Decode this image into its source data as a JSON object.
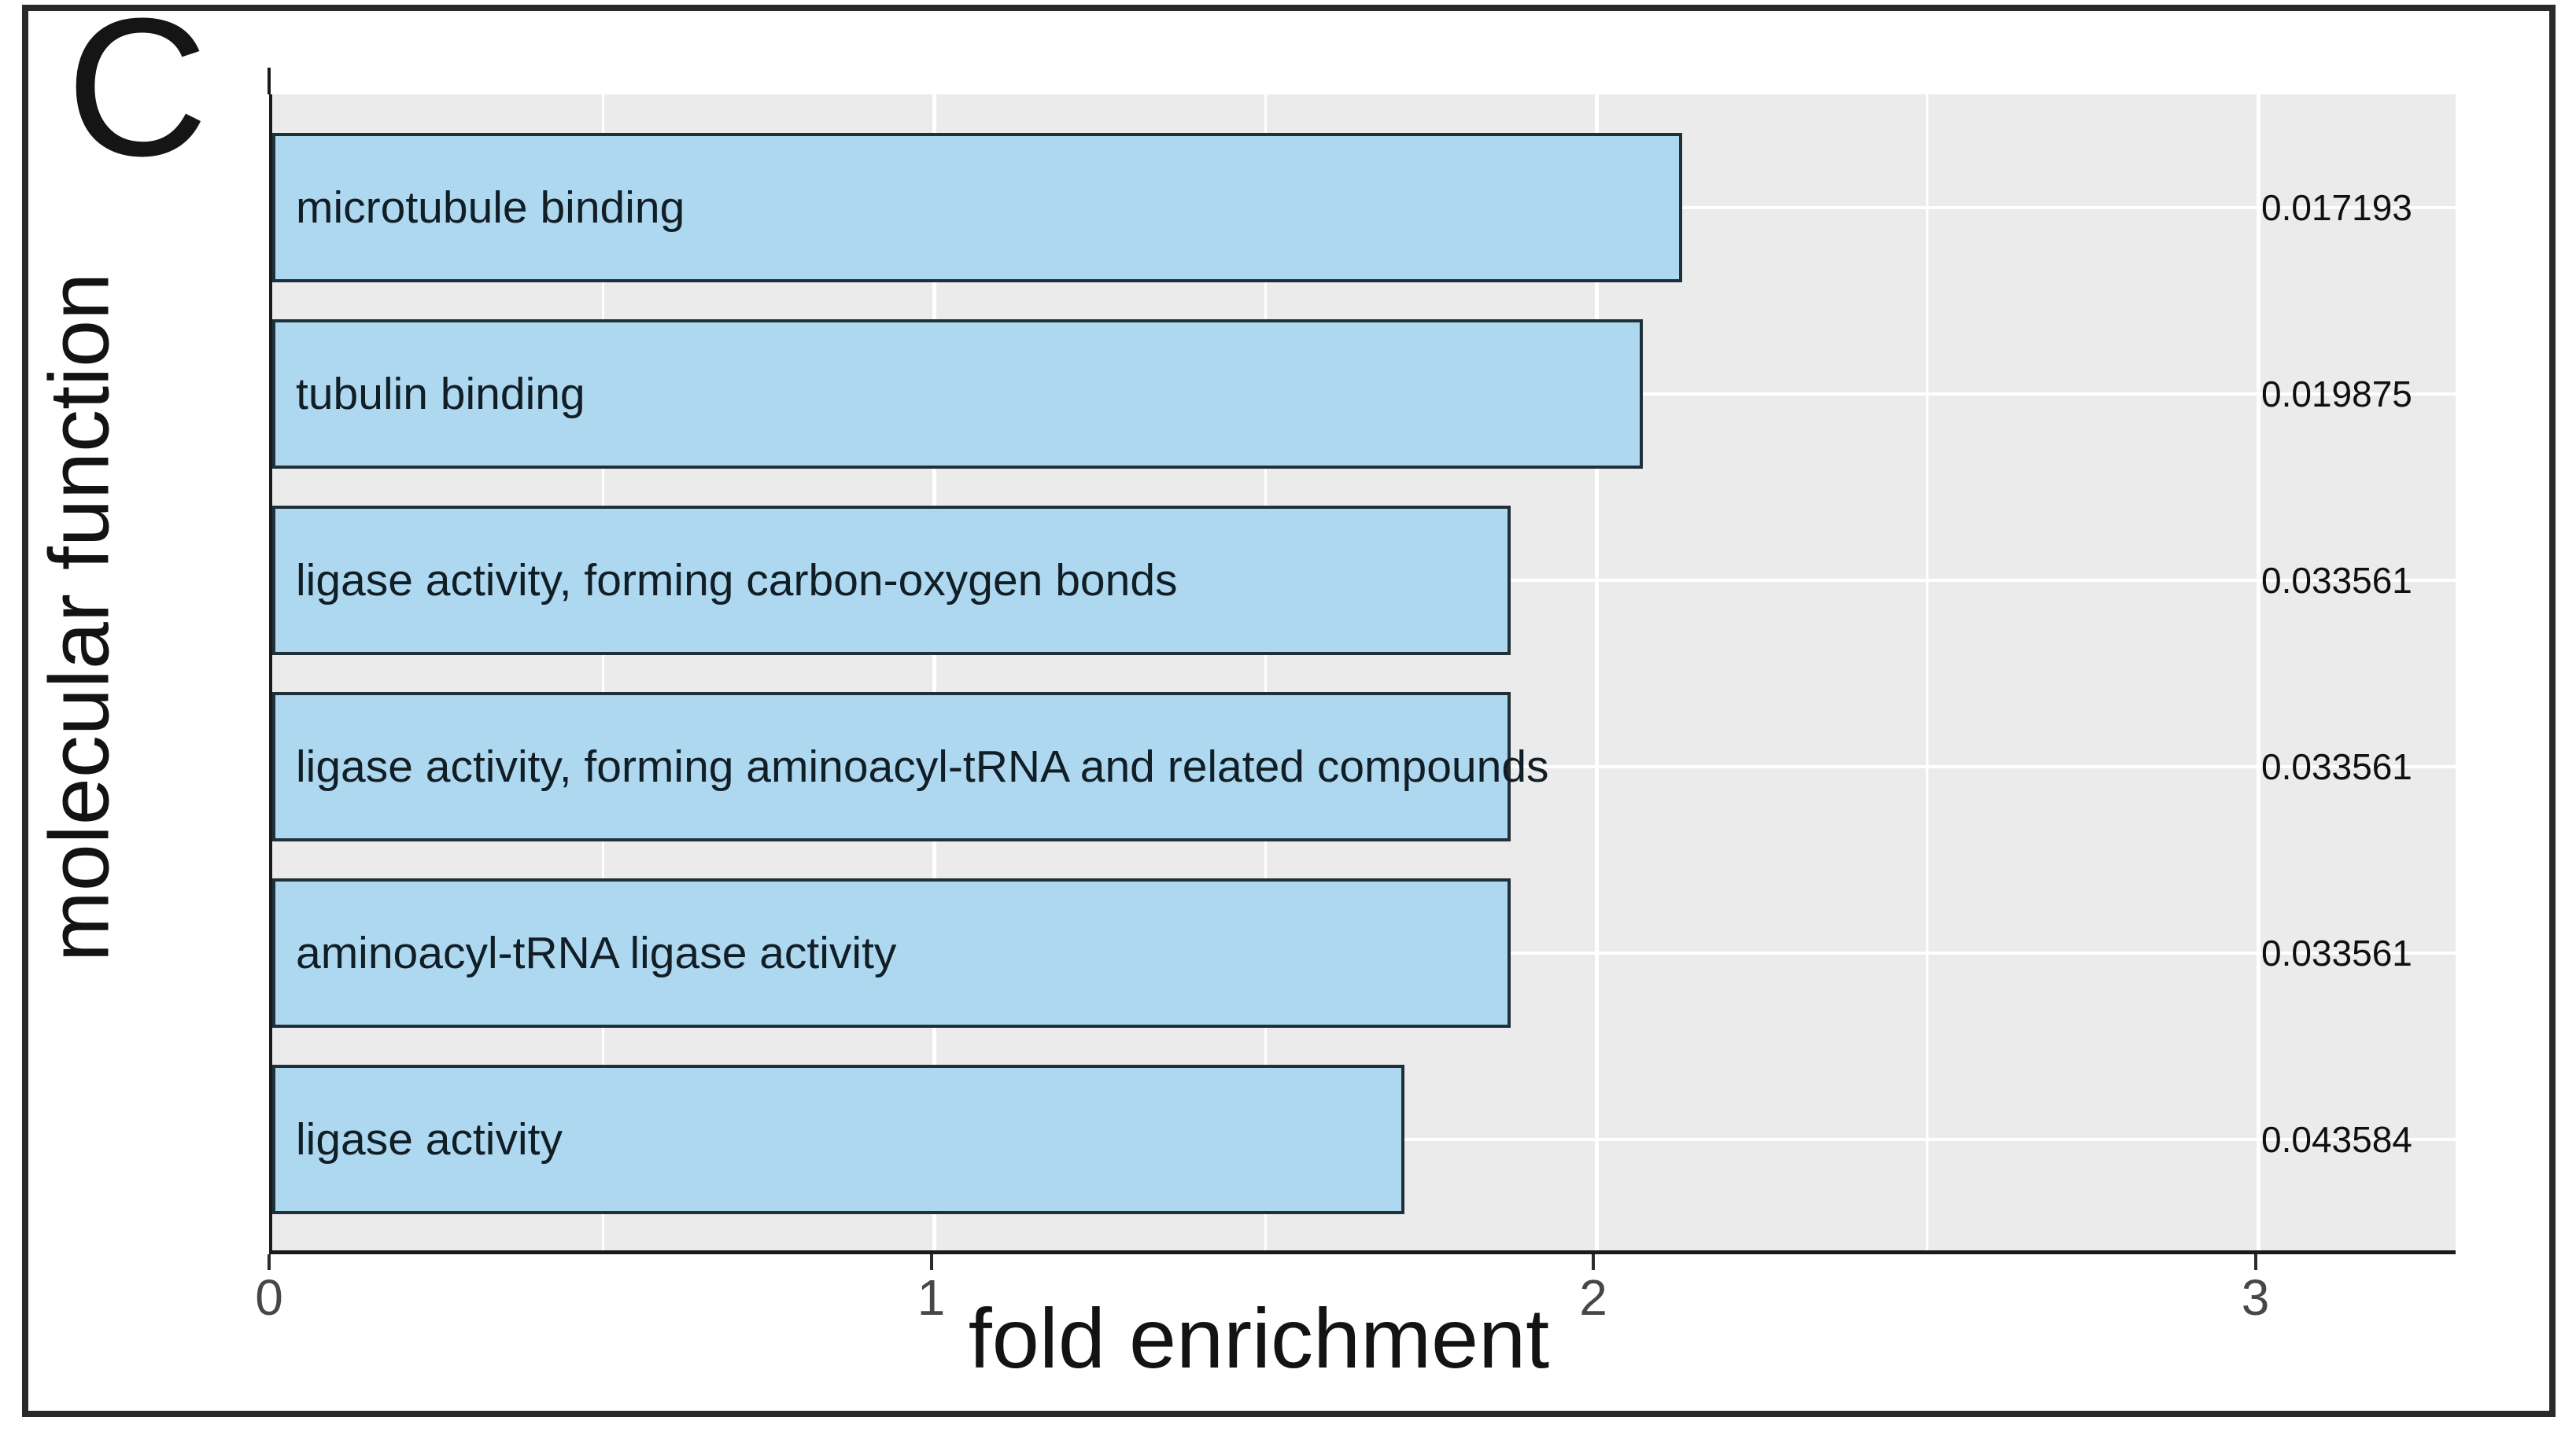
{
  "panel_label": "C",
  "chart_data": {
    "type": "bar",
    "orientation": "horizontal",
    "xlabel": "fold enrichment",
    "ylabel": "molecular function",
    "categories": [
      "microtubule binding",
      "tubulin binding",
      "ligase activity, forming carbon-oxygen bonds",
      "ligase activity, forming aminoacyl-tRNA and related compounds",
      "aminoacyl-tRNA ligase activity",
      "ligase activity"
    ],
    "values": [
      2.13,
      2.07,
      1.87,
      1.87,
      1.87,
      1.71
    ],
    "p_values": [
      "0.017193",
      "0.019875",
      "0.033561",
      "0.033561",
      "0.033561",
      "0.043584"
    ],
    "x_ticks": [
      "0",
      "1",
      "2",
      "3"
    ],
    "x_minor_gridlines": [
      0.5,
      1.5,
      2.5
    ],
    "xlim": [
      0,
      3.3
    ],
    "legend": "none",
    "grid": "white major and minor gridlines on gray panel",
    "colors": {
      "bar_fill": "#aed8f0",
      "bar_stroke": "#1f3038",
      "panel_background": "#ebebeb",
      "gridline": "#ffffff",
      "axis_line": "#1a1a1a",
      "tick_label": "#474747",
      "text": "#131313"
    }
  }
}
